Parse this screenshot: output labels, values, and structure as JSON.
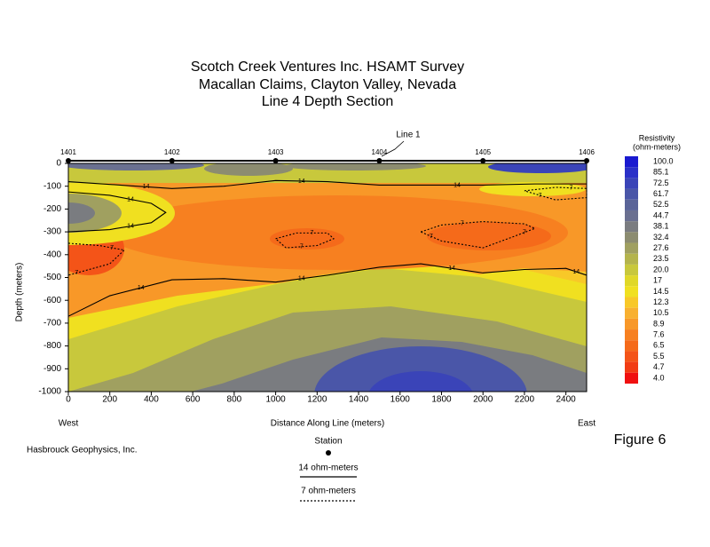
{
  "chart_data": {
    "type": "contour",
    "title": [
      "Scotch Creek Ventures Inc. HSAMT Survey",
      "Macallan Claims, Clayton Valley, Nevada",
      "Line 4 Depth Section"
    ],
    "xlabel": "Distance Along Line (meters)",
    "ylabel": "Depth (meters)",
    "x_end_labels": [
      "West",
      "East"
    ],
    "xlim": [
      0,
      2500
    ],
    "ylim": [
      -1000,
      0
    ],
    "xticks": [
      0,
      200,
      400,
      600,
      800,
      1000,
      1200,
      1400,
      1600,
      1800,
      2000,
      2200,
      2400
    ],
    "yticks": [
      0,
      -100,
      -200,
      -300,
      -400,
      -500,
      -600,
      -700,
      -800,
      -900,
      -1000
    ],
    "stations": {
      "names": [
        "1401",
        "1402",
        "1403",
        "1404",
        "1405",
        "1406"
      ],
      "x": [
        0,
        500,
        1000,
        1500,
        2000,
        2500
      ]
    },
    "annotation": "Line 1",
    "contours": [
      {
        "level": 14,
        "style": "solid",
        "x": [
          0,
          250,
          500,
          750,
          1000,
          1250,
          1500,
          1750,
          2000,
          2250,
          2500
        ],
        "y": [
          -80,
          -95,
          -110,
          -100,
          -75,
          -80,
          -95,
          -95,
          -95,
          -90,
          -90
        ]
      },
      {
        "level": 14,
        "style": "solid",
        "x": [
          0,
          200,
          400,
          470,
          400,
          200,
          0
        ],
        "y": [
          -125,
          -140,
          -175,
          -215,
          -260,
          -290,
          -300
        ]
      },
      {
        "level": 14,
        "style": "solid",
        "x": [
          0,
          200,
          500,
          750,
          1000,
          1250,
          1500,
          1700,
          2000,
          2200,
          2400,
          2500
        ],
        "y": [
          -670,
          -580,
          -510,
          -505,
          -520,
          -490,
          -455,
          -440,
          -480,
          -465,
          -460,
          -490
        ]
      },
      {
        "level": 7,
        "style": "dashed",
        "x": [
          1000,
          1100,
          1250,
          1280,
          1200,
          1050,
          1000
        ],
        "y": [
          -330,
          -305,
          -305,
          -330,
          -360,
          -370,
          -330
        ]
      },
      {
        "level": 7,
        "style": "dashed",
        "x": [
          1700,
          1800,
          2000,
          2200,
          2250,
          2150,
          2000,
          1800,
          1700
        ],
        "y": [
          -300,
          -270,
          -255,
          -265,
          -285,
          -320,
          -370,
          -340,
          -300
        ]
      },
      {
        "level": 7,
        "style": "dashed",
        "x": [
          0,
          150,
          270,
          200,
          80,
          0
        ],
        "y": [
          -350,
          -360,
          -380,
          -440,
          -470,
          -490
        ]
      },
      {
        "level": 7,
        "style": "dashed",
        "x": [
          2200,
          2350,
          2500,
          2500,
          2350,
          2200
        ],
        "y": [
          -120,
          -105,
          -110,
          -150,
          -160,
          -120
        ]
      }
    ],
    "colorbar": {
      "title": [
        "Resistivity",
        "(ohm-meters)"
      ],
      "levels": [
        {
          "value": 100,
          "label": "100.0"
        },
        85.1,
        72.5,
        61.7,
        52.5,
        44.7,
        38.1,
        32.4,
        27.6,
        23.5,
        {
          "value": 20,
          "label": "20.0"
        },
        17,
        14.5,
        12.3,
        10.5,
        8.9,
        7.6,
        6.5,
        5.5,
        4.7,
        {
          "value": 4,
          "label": "4.0"
        }
      ],
      "colors": [
        "#1a1ad0",
        "#2a30c8",
        "#3a44b8",
        "#4a56a8",
        "#5a6498",
        "#6a7090",
        "#7a7c80",
        "#8c8c70",
        "#a0a060",
        "#b4b44c",
        "#c8c83c",
        "#e0d828",
        "#f0e020",
        "#f8c828",
        "#f8b030",
        "#f89828",
        "#f78020",
        "#f56a1a",
        "#f45418",
        "#f23c14",
        "#f01010"
      ]
    },
    "legend": {
      "station": "Station",
      "solid": "14 ohm-meters",
      "dashed": "7 ohm-meters"
    },
    "credit": "Hasbrouck Geophysics, Inc.",
    "figure_label": "Figure 6"
  }
}
